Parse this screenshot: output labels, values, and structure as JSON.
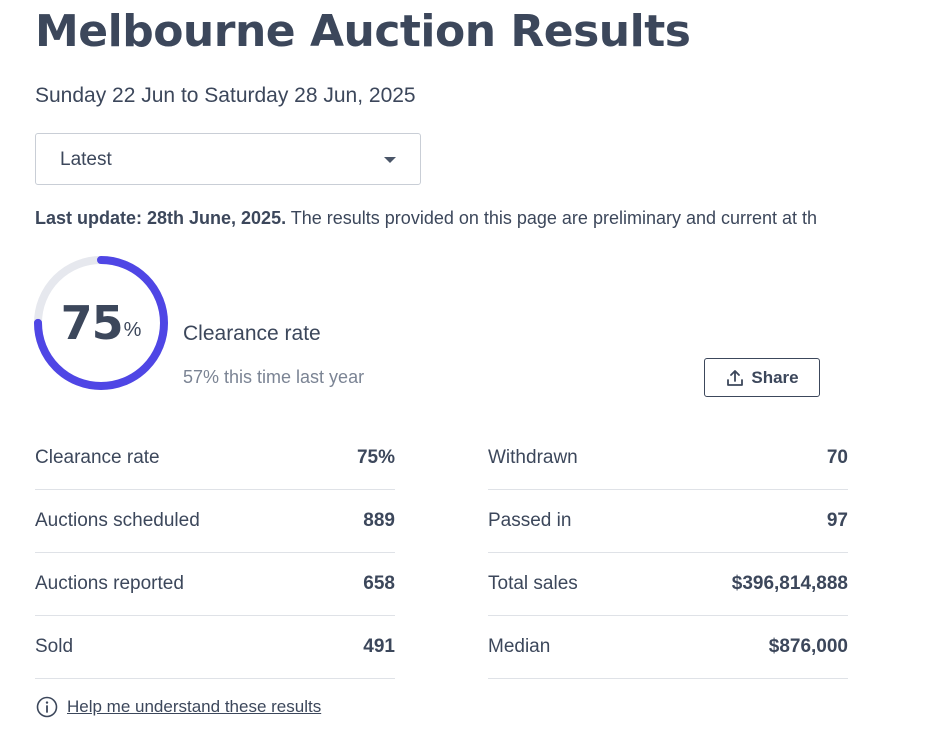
{
  "header": {
    "title": "Melbourne Auction Results",
    "date_range": "Sunday 22 Jun to Saturday 28 Jun, 2025"
  },
  "period_select": {
    "selected": "Latest"
  },
  "update_notice": {
    "label": "Last update: 28th June, 2025.",
    "text": "The results provided on this page are preliminary and current at th"
  },
  "clearance": {
    "rate_value": "75",
    "rate_unit": "%",
    "rate_fraction": 0.75,
    "label": "Clearance rate",
    "last_year": "57% this time last year",
    "ring_color": "#4f46e5",
    "track_color": "#e6e8ee"
  },
  "share_button": {
    "label": "Share"
  },
  "stats_left": [
    {
      "label": "Clearance rate",
      "value": "75%"
    },
    {
      "label": "Auctions scheduled",
      "value": "889"
    },
    {
      "label": "Auctions reported",
      "value": "658"
    },
    {
      "label": "Sold",
      "value": "491"
    }
  ],
  "stats_right": [
    {
      "label": "Withdrawn",
      "value": "70"
    },
    {
      "label": "Passed in",
      "value": "97"
    },
    {
      "label": "Total sales",
      "value": "$396,814,888"
    },
    {
      "label": "Median",
      "value": "$876,000"
    }
  ],
  "help_link": {
    "label": "Help me understand these results",
    "icon": "info-icon"
  }
}
